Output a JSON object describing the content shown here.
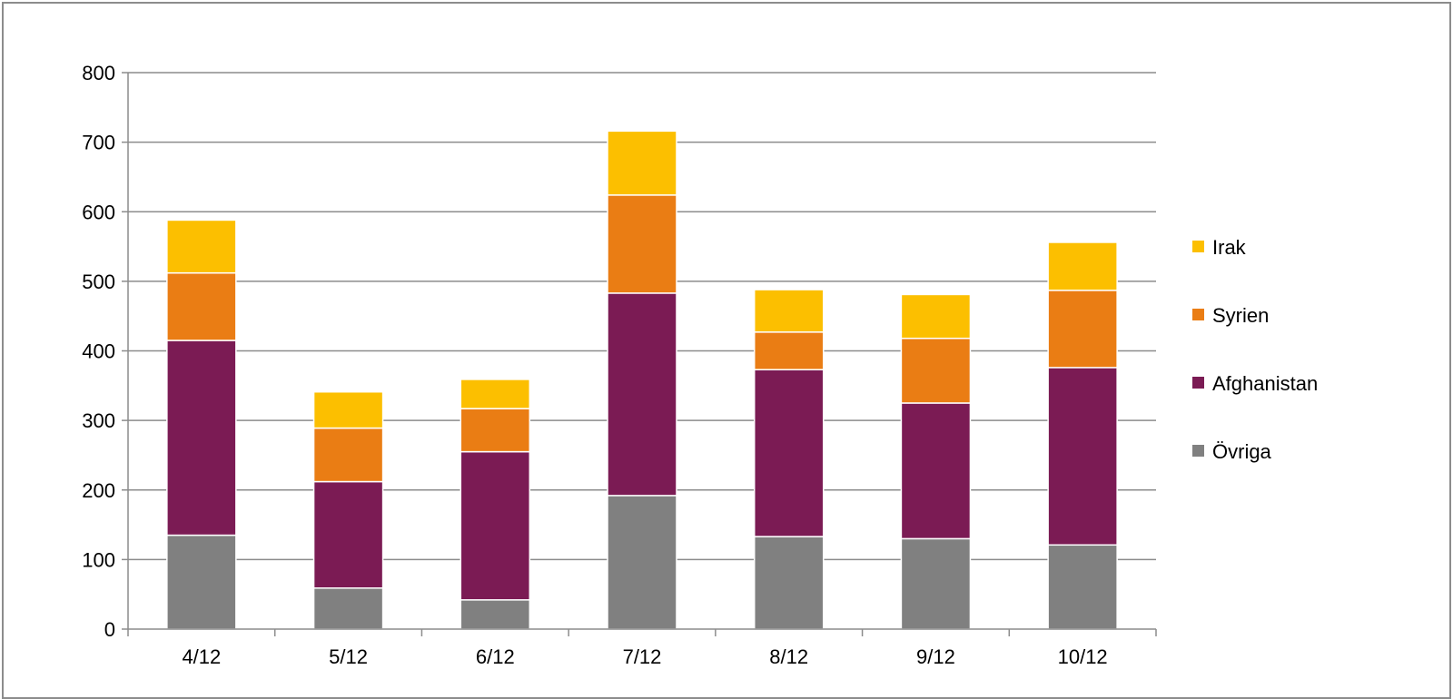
{
  "chart_data": {
    "type": "bar",
    "stacked": true,
    "categories": [
      "4/12",
      "5/12",
      "6/12",
      "7/12",
      "8/12",
      "9/12",
      "10/12"
    ],
    "series": [
      {
        "name": "Övriga",
        "color": "#808080",
        "values": [
          135,
          59,
          42,
          192,
          133,
          130,
          121
        ]
      },
      {
        "name": "Afghanistan",
        "color": "#7b1b54",
        "values": [
          280,
          153,
          213,
          291,
          240,
          195,
          255
        ]
      },
      {
        "name": "Syrien",
        "color": "#ea7d14",
        "values": [
          97,
          77,
          62,
          141,
          54,
          93,
          111
        ]
      },
      {
        "name": "Irak",
        "color": "#fcbf00",
        "values": [
          76,
          52,
          42,
          92,
          61,
          63,
          69
        ]
      }
    ],
    "ylim": [
      0,
      800
    ],
    "yticks": [
      0,
      100,
      200,
      300,
      400,
      500,
      600,
      700,
      800
    ],
    "grid": true,
    "legend": "right",
    "legend_order": [
      "Irak",
      "Syrien",
      "Afghanistan",
      "Övriga"
    ]
  }
}
